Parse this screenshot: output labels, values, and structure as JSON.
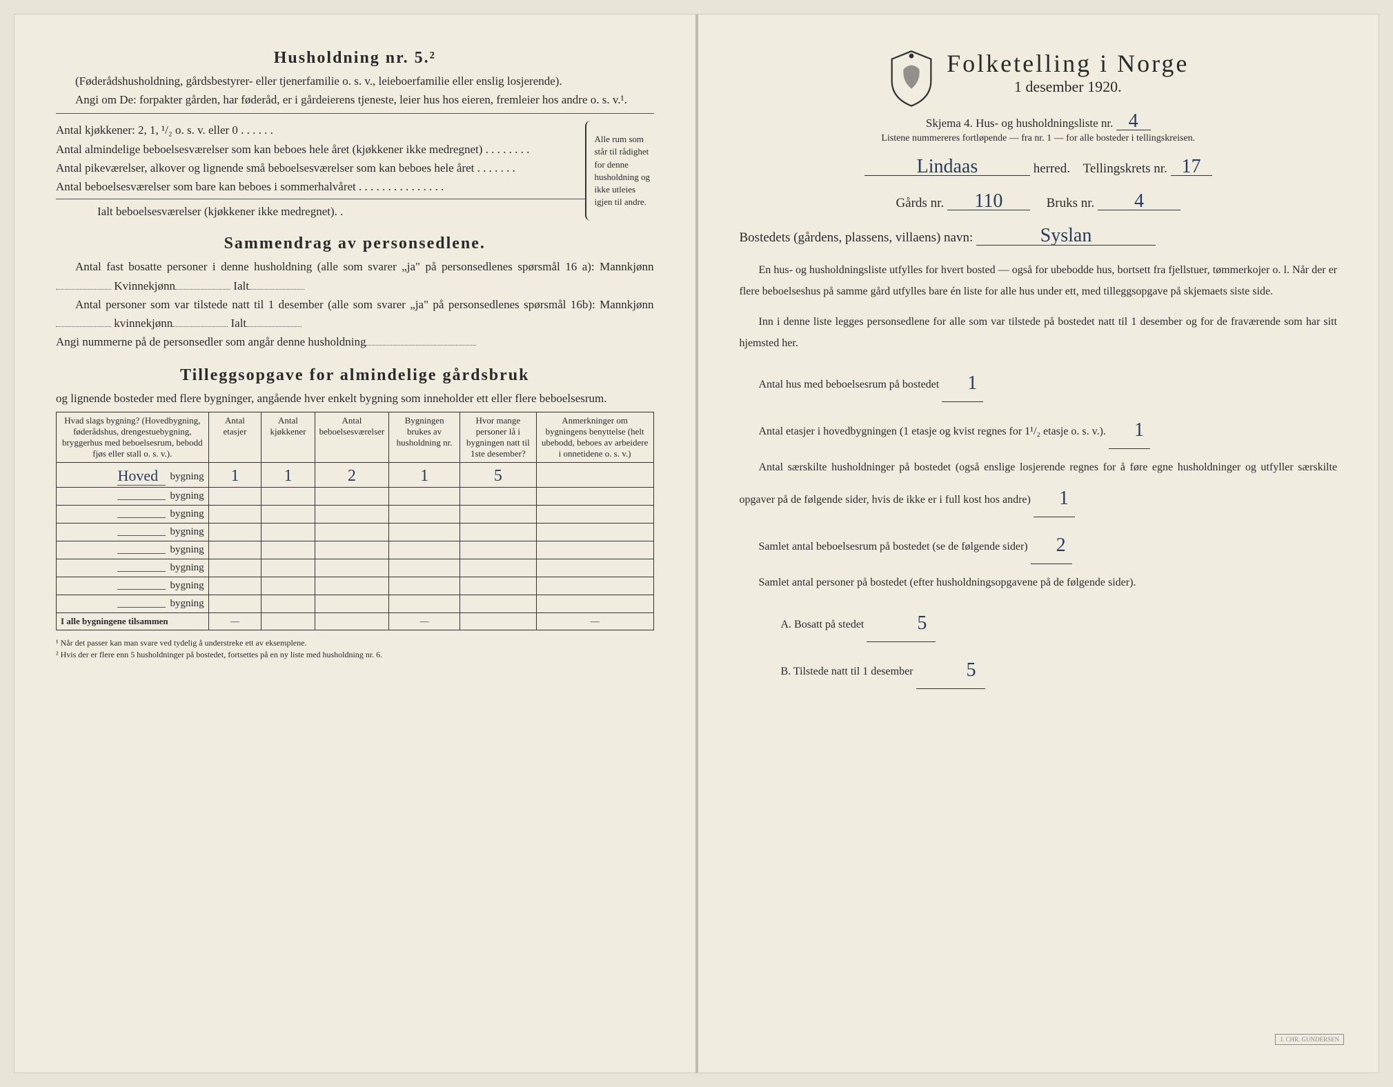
{
  "left": {
    "husholdning": {
      "title": "Husholdning nr. 5.²",
      "sub": "(Føderådshusholdning, gårdsbestyrer- eller tjenerfamilie o. s. v., leieboerfamilie eller enslig losjerende).",
      "angi": "Angi om De:  forpakter gården, har føderåd, er i gårdeierens tjeneste, leier hus hos eieren, fremleier hos andre o. s. v.¹.",
      "rows": [
        "Antal kjøkkener: 2, 1, ¹/₂ o. s. v. eller 0 . . . . . .",
        "Antal almindelige beboelsesværelser som kan beboes hele året (kjøkkener ikke medregnet) . . . . . . . .",
        "Antal pikeværelser, alkover og lignende små beboelsesværelser som kan beboes hele året . . . . . . .",
        "Antal beboelsesværelser som bare kan beboes i sommerhalvåret . . . . . . . . . . . . . . .",
        "Ialt beboelsesværelser (kjøkkener ikke medregnet). ."
      ],
      "brace_note": "Alle rum som står til rådighet for denne husholdning og ikke utleies igjen til andre."
    },
    "sammendrag": {
      "title": "Sammendrag av personsedlene.",
      "l1": "Antal fast bosatte personer i denne husholdning (alle som svarer „ja\" på personsedlenes spørsmål 16 a): Mannkjønn",
      "kvinne": "Kvinnekjønn",
      "ialt": "Ialt",
      "l2": "Antal personer som var tilstede natt til 1 desember (alle som svarer „ja\" på personsedlenes spørsmål 16b): Mannkjønn",
      "kvinne2": "kvinnekjønn",
      "angi": "Angi nummerne på de personsedler som angår denne husholdning"
    },
    "tillegg": {
      "title": "Tilleggsopgave for almindelige gårdsbruk",
      "sub": "og lignende bosteder med flere bygninger, angående hver enkelt bygning som inneholder ett eller flere beboelsesrum.",
      "headers": [
        "Hvad slags bygning?\n(Hovedbygning, føderådshus, drengestuebygning, bryggerhus med beboelsesrum, bebodd fjøs eller stall o. s. v.).",
        "Antal etasjer",
        "Antal kjøkkener",
        "Antal beboelsesværelser",
        "Bygningen brukes av husholdning nr.",
        "Hvor mange personer lå i bygningen natt til 1ste desember?",
        "Anmerkninger om bygningens benyttelse (helt ubebodd, beboes av arbeidere i onnetidene o. s. v.)"
      ],
      "rows": [
        {
          "pfx": "Hoved",
          "suffix": "bygning",
          "v": [
            "1",
            "1",
            "2",
            "1",
            "5",
            ""
          ]
        },
        {
          "pfx": "",
          "suffix": "bygning",
          "v": [
            "",
            "",
            "",
            "",
            "",
            ""
          ]
        },
        {
          "pfx": "",
          "suffix": "bygning",
          "v": [
            "",
            "",
            "",
            "",
            "",
            ""
          ]
        },
        {
          "pfx": "",
          "suffix": "bygning",
          "v": [
            "",
            "",
            "",
            "",
            "",
            ""
          ]
        },
        {
          "pfx": "",
          "suffix": "bygning",
          "v": [
            "",
            "",
            "",
            "",
            "",
            ""
          ]
        },
        {
          "pfx": "",
          "suffix": "bygning",
          "v": [
            "",
            "",
            "",
            "",
            "",
            ""
          ]
        },
        {
          "pfx": "",
          "suffix": "bygning",
          "v": [
            "",
            "",
            "",
            "",
            "",
            ""
          ]
        },
        {
          "pfx": "",
          "suffix": "bygning",
          "v": [
            "",
            "",
            "",
            "",
            "",
            ""
          ]
        }
      ],
      "total_label": "I alle bygningene tilsammen",
      "total": [
        "—",
        "",
        "",
        "—",
        "",
        "—"
      ]
    },
    "footnotes": {
      "f1": "¹  Når det passer kan man svare ved tydelig å understreke ett av eksemplene.",
      "f2": "²  Hvis der er flere enn 5 husholdninger på bostedet, fortsettes på en ny liste med husholdning nr. 6."
    }
  },
  "right": {
    "main_title": "Folketelling  i  Norge",
    "sub_title": "1 desember 1920.",
    "skjema": "Skjema 4.  Hus- og husholdningsliste nr.",
    "skjema_val": "4",
    "listene": "Listene nummereres fortløpende — fra nr. 1 — for alle bosteder i tellingskreisen.",
    "herred_label": "herred.",
    "herred_val": "Lindaas",
    "tellingskrets_label": "Tellingskrets nr.",
    "tellingskrets_val": "17",
    "gards_label": "Gårds nr.",
    "gards_val": "110",
    "bruks_label": "Bruks nr.",
    "bruks_val": "4",
    "bosted_label": "Bostedets (gårdens, plassens, villaens) navn:",
    "bosted_val": "Syslan",
    "para1": "En hus- og husholdningsliste utfylles for hvert bosted — også for ubebodde hus, bortsett fra fjellstuer, tømmerkojer o. l. Når der er flere beboelseshus på samme gård utfylles bare én liste for alle hus under ett, med tilleggsopgave på skjemaets siste side.",
    "para2": "Inn i denne liste legges personsedlene for alle som var tilstede på bostedet natt til 1 desember og for de fraværende som har sitt hjemsted her.",
    "q1": "Antal hus med beboelsesrum på bostedet",
    "q1_val": "1",
    "q2a": "Antal etasjer i hovedbygningen (1 etasje og kvist regnes for 1¹/₂ etasje o. s. v.).",
    "q2_val": "1",
    "q3": "Antal særskilte husholdninger på bostedet (også enslige losjerende regnes for å føre egne husholdninger og utfyller særskilte opgaver på de følgende sider, hvis de ikke er i full kost hos andre)",
    "q3_val": "1",
    "q4": "Samlet antal beboelsesrum på bostedet (se de følgende sider)",
    "q4_val": "2",
    "q5": "Samlet antal personer på bostedet (efter husholdningsopgavene på de følgende sider).",
    "qA": "A.  Bosatt på stedet",
    "qA_val": "5",
    "qB": "B.  Tilstede natt til 1 desember",
    "qB_val": "5",
    "stamp": "J. CHR. GUNDERSEN"
  },
  "colors": {
    "paper": "#f0ece0",
    "ink": "#2a2a2a",
    "hand": "#2a3a5a"
  }
}
